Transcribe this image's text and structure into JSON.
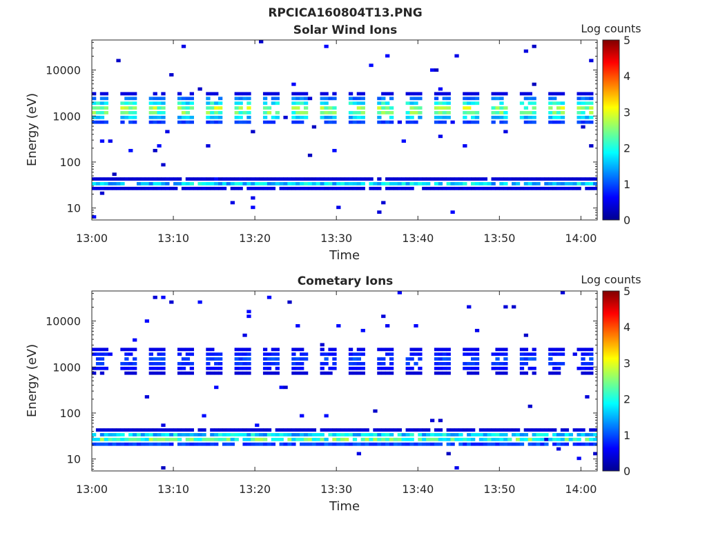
{
  "figure": {
    "title": "RPCICA160804T13.PNG"
  },
  "chart_data": [
    {
      "type": "heatmap",
      "title": "Solar Wind Ions",
      "xlabel": "Time",
      "ylabel": "Energy (eV)",
      "xlim": [
        "13:00",
        "14:02"
      ],
      "x_ticks": [
        "13:00",
        "13:10",
        "13:20",
        "13:30",
        "13:40",
        "13:50",
        "14:00"
      ],
      "ylim": [
        5.5,
        45000
      ],
      "yscale": "log",
      "y_ticks": [
        "10",
        "100",
        "1000",
        "10000"
      ],
      "y_tick_values": [
        10,
        100,
        1000,
        10000
      ],
      "colorbar": {
        "label": "Log counts",
        "range": [
          0,
          5
        ],
        "ticks": [
          "0",
          "1",
          "2",
          "3",
          "4",
          "5"
        ],
        "colormap": "jet"
      },
      "bands": [
        {
          "name": "high-energy",
          "energy_range_eV": [
            600,
            3000
          ],
          "peak_log_counts": 3.0
        },
        {
          "name": "low-energy",
          "energy_range_eV": [
            25,
            42
          ],
          "peak_log_counts": 1.8
        }
      ]
    },
    {
      "type": "heatmap",
      "title": "Cometary Ions",
      "xlabel": "Time",
      "ylabel": "Energy (eV)",
      "xlim": [
        "13:00",
        "14:02"
      ],
      "x_ticks": [
        "13:00",
        "13:10",
        "13:20",
        "13:30",
        "13:40",
        "13:50",
        "14:00"
      ],
      "ylim": [
        5.5,
        45000
      ],
      "yscale": "log",
      "y_ticks": [
        "10",
        "100",
        "1000",
        "10000"
      ],
      "y_tick_values": [
        10,
        100,
        1000,
        10000
      ],
      "colorbar": {
        "label": "Log counts",
        "range": [
          0,
          5
        ],
        "ticks": [
          "0",
          "1",
          "2",
          "3",
          "4",
          "5"
        ],
        "colormap": "jet"
      },
      "bands": [
        {
          "name": "high-energy",
          "energy_range_eV": [
            700,
            2600
          ],
          "peak_log_counts": 0.8
        },
        {
          "name": "low-energy",
          "energy_range_eV": [
            18,
            42
          ],
          "peak_log_counts": 3.0
        }
      ]
    }
  ]
}
